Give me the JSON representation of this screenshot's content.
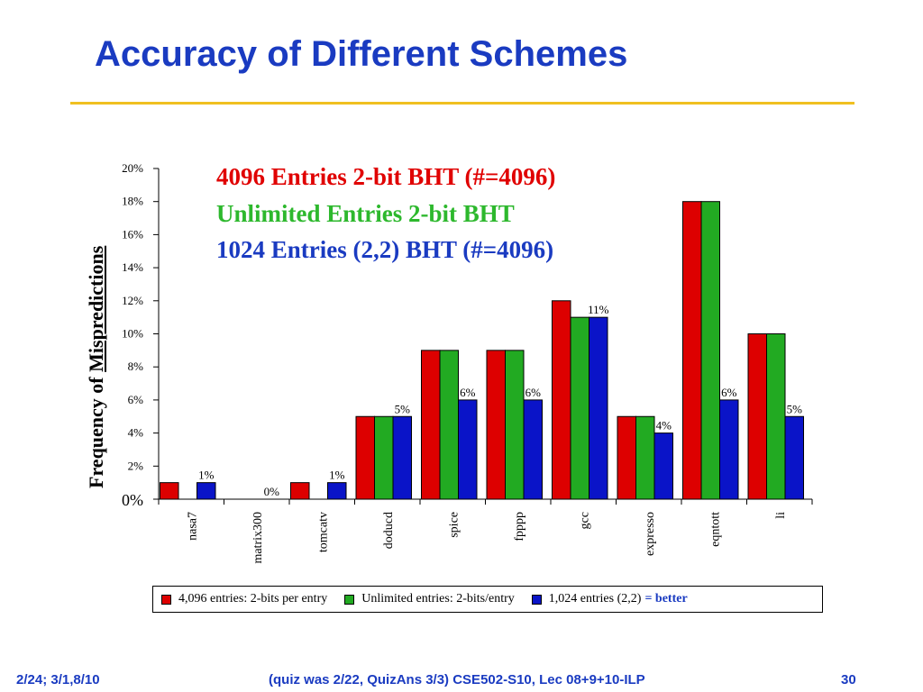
{
  "slide": {
    "title": "Accuracy of Different Schemes",
    "footer_left": "2/24; 3/1,8/10",
    "footer_center": "(quiz was 2/22, QuizAns 3/3)  CSE502-S10, Lec 08+9+10-ILP",
    "footer_right": "30"
  },
  "headline": {
    "line1": "4096 Entries 2-bit BHT (#=4096)",
    "line2": "Unlimited Entries 2-bit BHT",
    "line3": "1024 Entries (2,2) BHT (#=4096)",
    "colors": [
      "#e00000",
      "#2db82d",
      "#1a3bc1"
    ]
  },
  "chart_data": {
    "type": "bar",
    "ylabel_prefix": "Frequency of ",
    "ylabel_underlined": "Mispredictions",
    "ylim": [
      0,
      20
    ],
    "yticks": [
      "0%",
      "2%",
      "4%",
      "6%",
      "8%",
      "10%",
      "12%",
      "14%",
      "16%",
      "18%",
      "20%"
    ],
    "categories": [
      "nasa7",
      "matrix300",
      "tomcatv",
      "doducd",
      "spice",
      "fpppp",
      "gcc",
      "expresso",
      "eqntott",
      "li"
    ],
    "series": [
      {
        "name": "4,096 entries: 2-bits per entry",
        "color": "#dd0000",
        "values": [
          1,
          0,
          1,
          5,
          9,
          9,
          12,
          5,
          18,
          10
        ]
      },
      {
        "name": "Unlimited entries: 2-bits/entry",
        "color": "#22aa22",
        "values": [
          0,
          0,
          0,
          5,
          9,
          9,
          11,
          5,
          18,
          10
        ]
      },
      {
        "name": "1,024 entries (2,2)",
        "color": "#0a14c8",
        "values": [
          1,
          0,
          1,
          5,
          6,
          6,
          11,
          4,
          6,
          5
        ]
      }
    ],
    "data_labels": [
      "1%",
      "0%",
      "1%",
      "5%",
      "6%",
      "6%",
      "11%",
      "4%",
      "6%",
      "5%"
    ],
    "legend_extra": "= better"
  }
}
